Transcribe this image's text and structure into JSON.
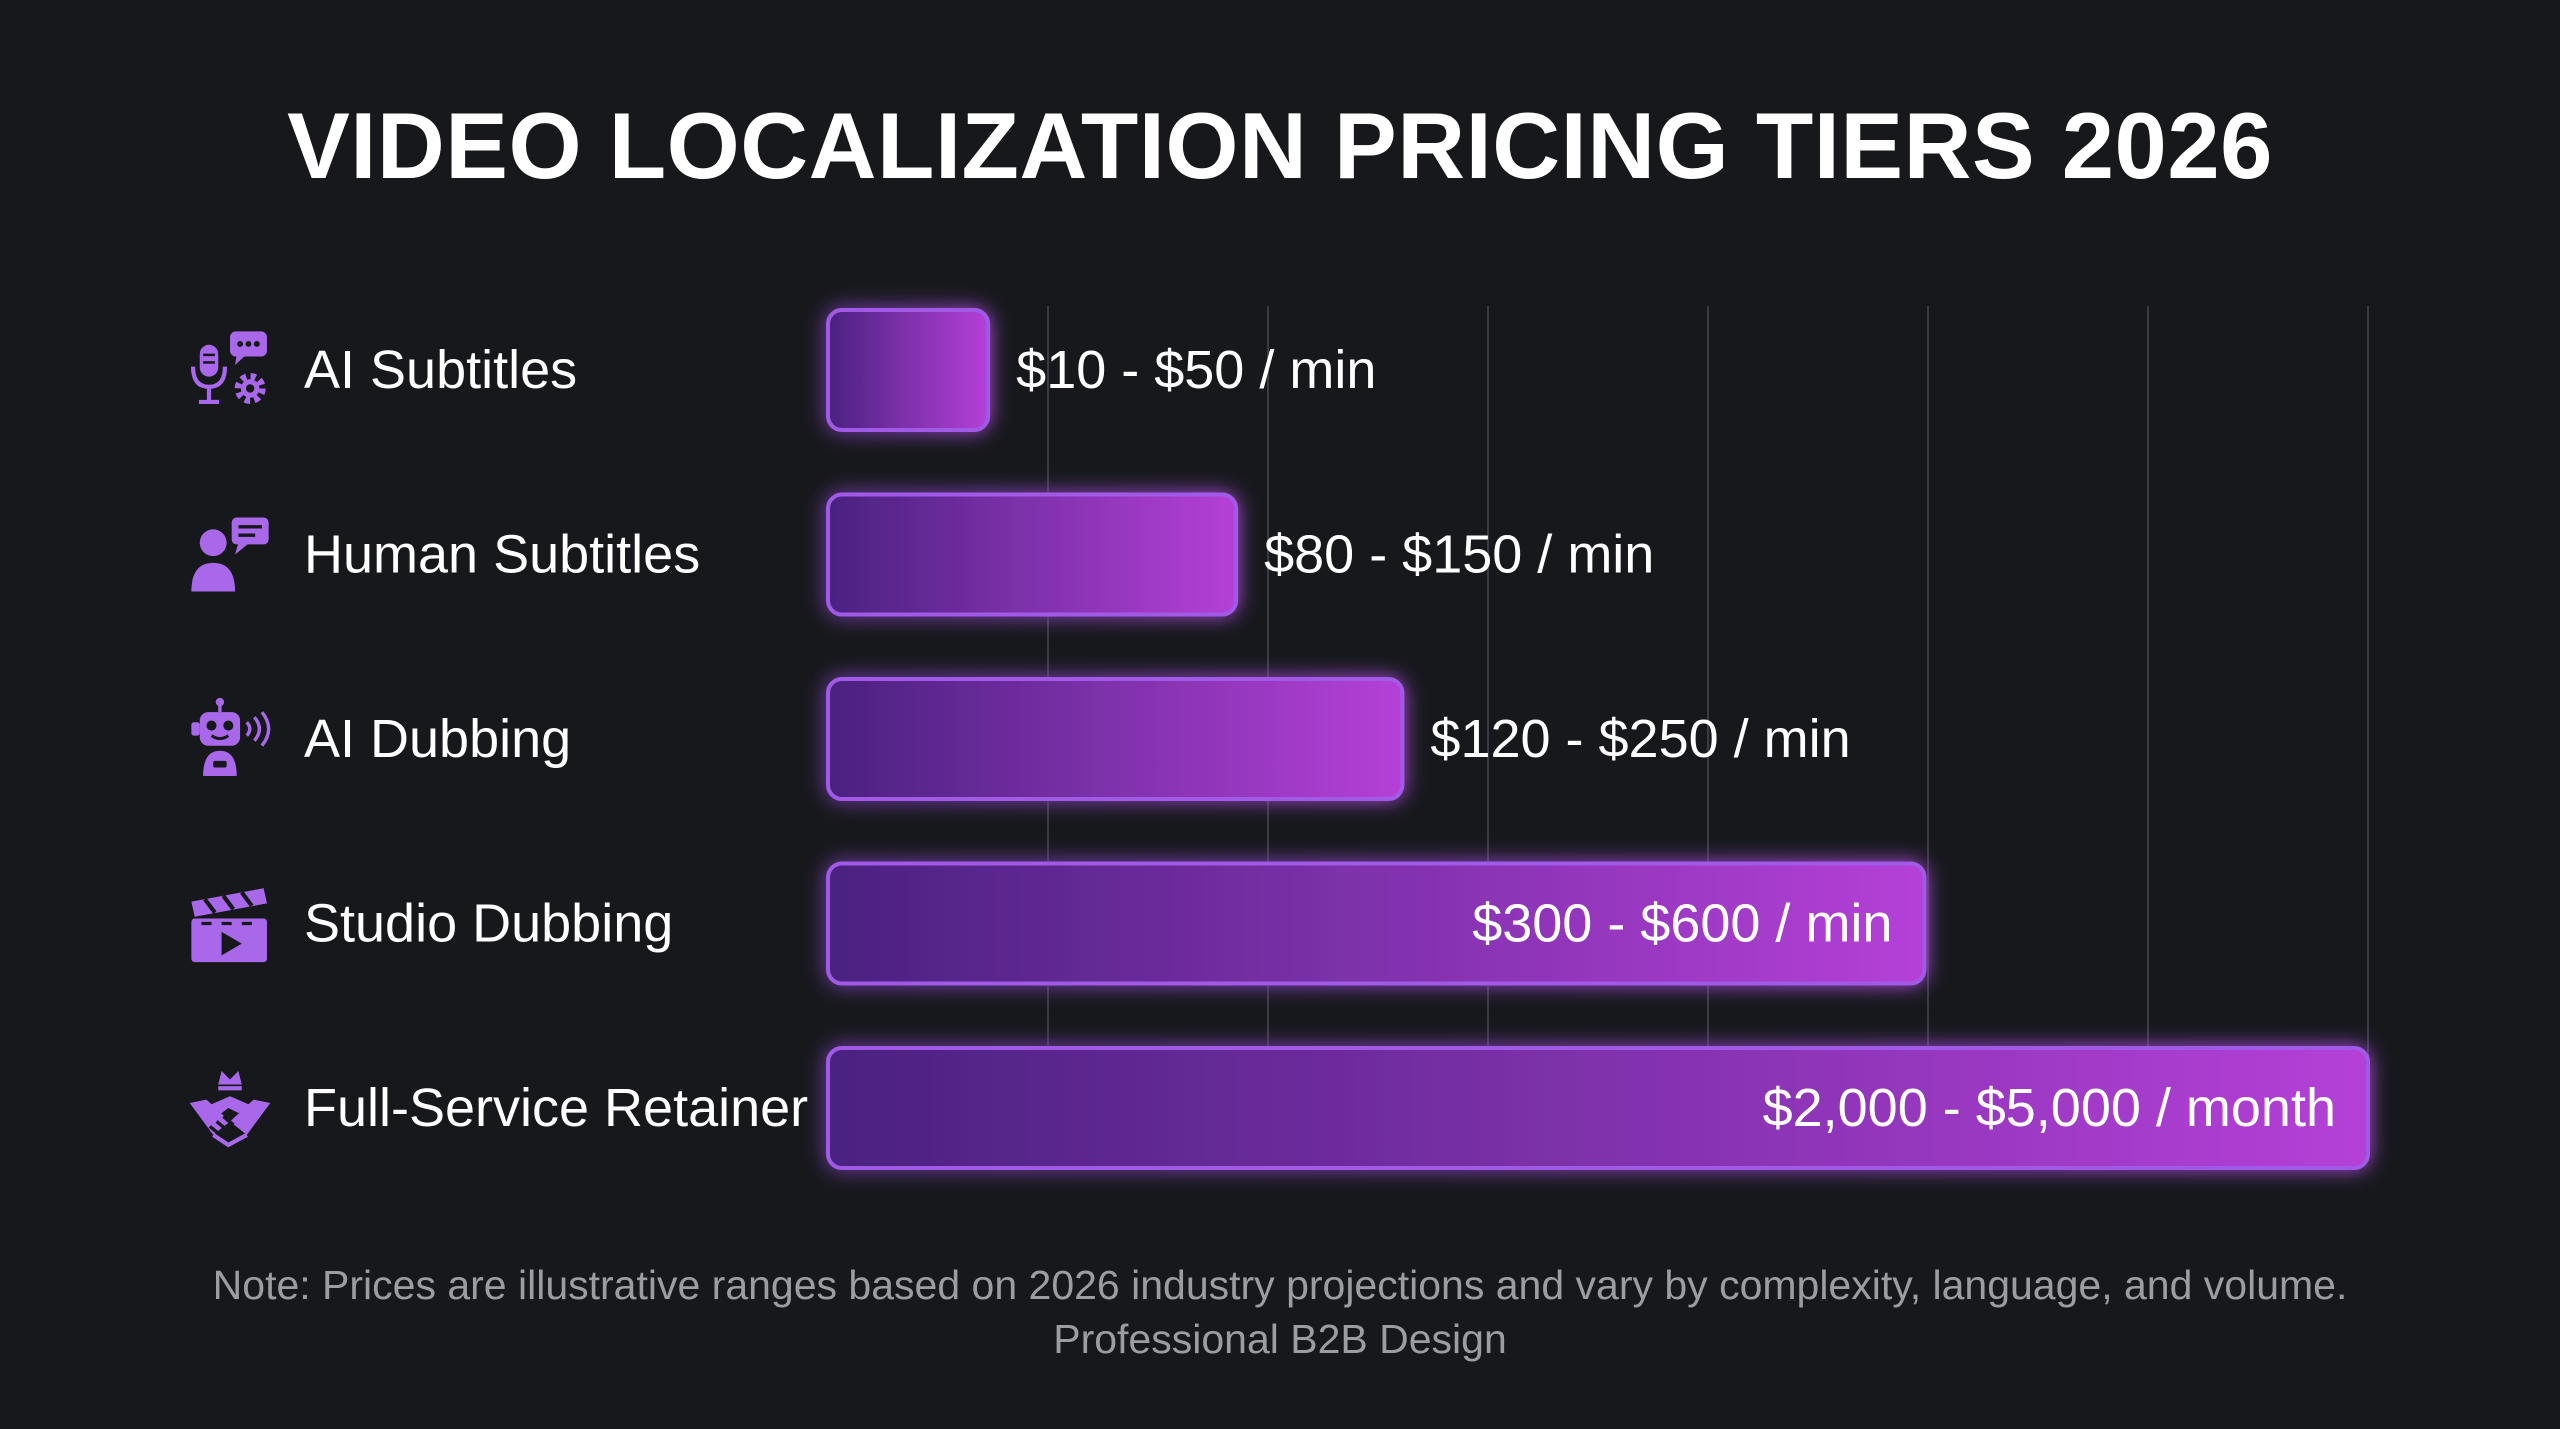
{
  "title": "VIDEO LOCALIZATION PRICING TIERS 2026",
  "note": {
    "line1": "Note: Prices are illustrative ranges based on 2026 industry projections and vary by complexity, language, and volume.",
    "line2": "Professional B2B Design"
  },
  "colors": {
    "background": "#17181c",
    "bar_start": "#4a2280",
    "bar_end": "#b540d8",
    "bar_border": "#a05ae6",
    "icon": "#a968ea",
    "grid": "#3a3b44"
  },
  "chart_data": {
    "type": "bar",
    "orientation": "horizontal",
    "title": "VIDEO LOCALIZATION PRICING TIERS 2026",
    "categories": [
      "AI Subtitles",
      "Human Subtitles",
      "AI Dubbing",
      "Studio Dubbing",
      "Full-Service Retainer"
    ],
    "icons": [
      "microphone-chat-gear-icon",
      "person-chat-icon",
      "robot-voice-icon",
      "clapperboard-play-icon",
      "handshake-crown-icon"
    ],
    "value_labels": [
      "$10 - $50 / min",
      "$80 - $150 / min",
      "$120 - $250 / min",
      "$300 - $600 / min",
      "$2,000 - $5,000 / month"
    ],
    "values": [
      0.104,
      0.265,
      0.373,
      0.712,
      1.0
    ],
    "label_inside": [
      false,
      false,
      false,
      true,
      true
    ],
    "grid": true,
    "xlabel": "",
    "ylabel": ""
  }
}
